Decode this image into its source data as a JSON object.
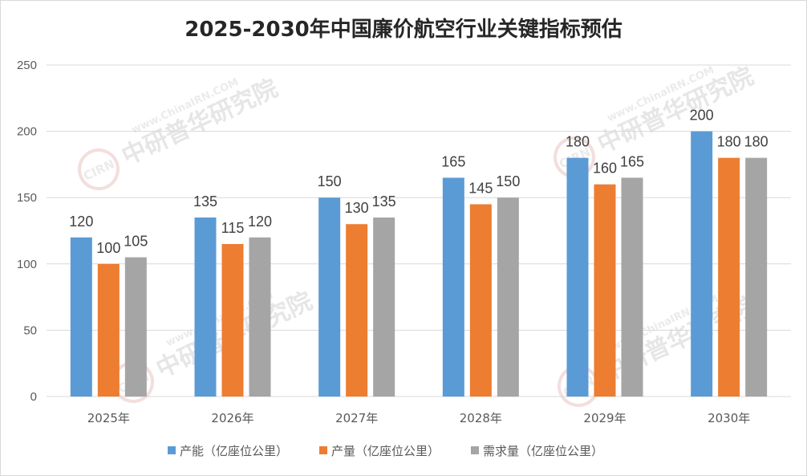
{
  "chart_data": {
    "type": "bar",
    "title": "2025-2030年中国廉价航空行业关键指标预估",
    "categories": [
      "2025年",
      "2026年",
      "2027年",
      "2028年",
      "2029年",
      "2030年"
    ],
    "series": [
      {
        "name": "产能（亿座位公里）",
        "color": "#5B9BD5",
        "values": [
          120,
          135,
          150,
          165,
          180,
          200
        ]
      },
      {
        "name": "产量（亿座位公里）",
        "color": "#ED7D31",
        "values": [
          100,
          115,
          130,
          145,
          160,
          180
        ]
      },
      {
        "name": "需求量（亿座位公里）",
        "color": "#A5A5A5",
        "values": [
          105,
          120,
          135,
          150,
          165,
          180
        ]
      }
    ],
    "ylim": [
      0,
      250
    ],
    "yticks": [
      0,
      50,
      100,
      150,
      200,
      250
    ],
    "grid": true,
    "legend_position": "bottom",
    "data_labels": true
  },
  "watermark": {
    "logo": "CIRN",
    "cn": "中研普华研究院",
    "en": "www.ChinaIRN.COM"
  }
}
